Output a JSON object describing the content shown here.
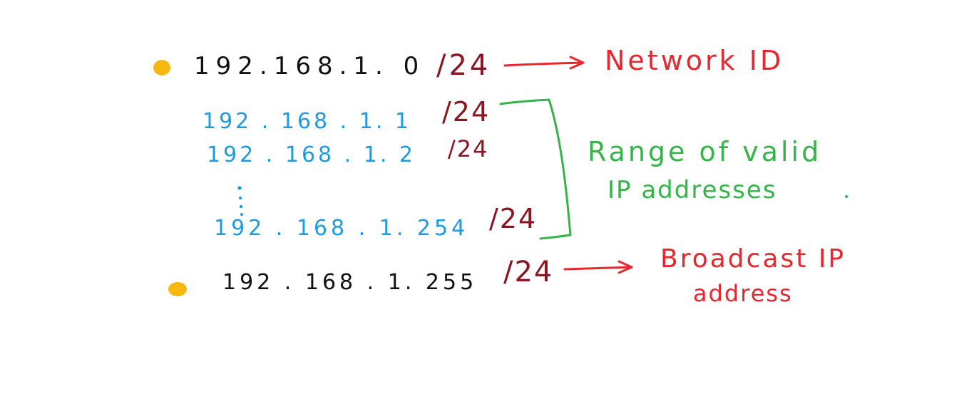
{
  "colors": {
    "black": "#111111",
    "blue": "#1c9be0",
    "dark_red": "#8b1520",
    "red": "#e8262e",
    "green": "#33b548",
    "bullet": "#f7b812",
    "background": "#ffffff"
  },
  "network": {
    "address": "192.168.1. 0",
    "prefix": "/24",
    "arrow_icon": "arrow-right",
    "label": "Network ID"
  },
  "valid_range": {
    "rows": [
      {
        "address": "192 . 168 . 1. 1",
        "prefix": "/24"
      },
      {
        "address": "192 . 168 . 1. 2",
        "prefix": "/24"
      },
      {
        "address": "192 . 168 . 1. 254",
        "prefix": "/24"
      }
    ],
    "ellipsis_icon": "vertical-dots",
    "bracket_icon": "right-bracket",
    "label_line1": "Range of valid",
    "label_line2": "IP addresses"
  },
  "broadcast": {
    "address": "192 . 168 . 1. 255",
    "prefix": "/24",
    "arrow_icon": "arrow-right",
    "label_line1": "Broadcast IP",
    "label_line2": "address"
  }
}
